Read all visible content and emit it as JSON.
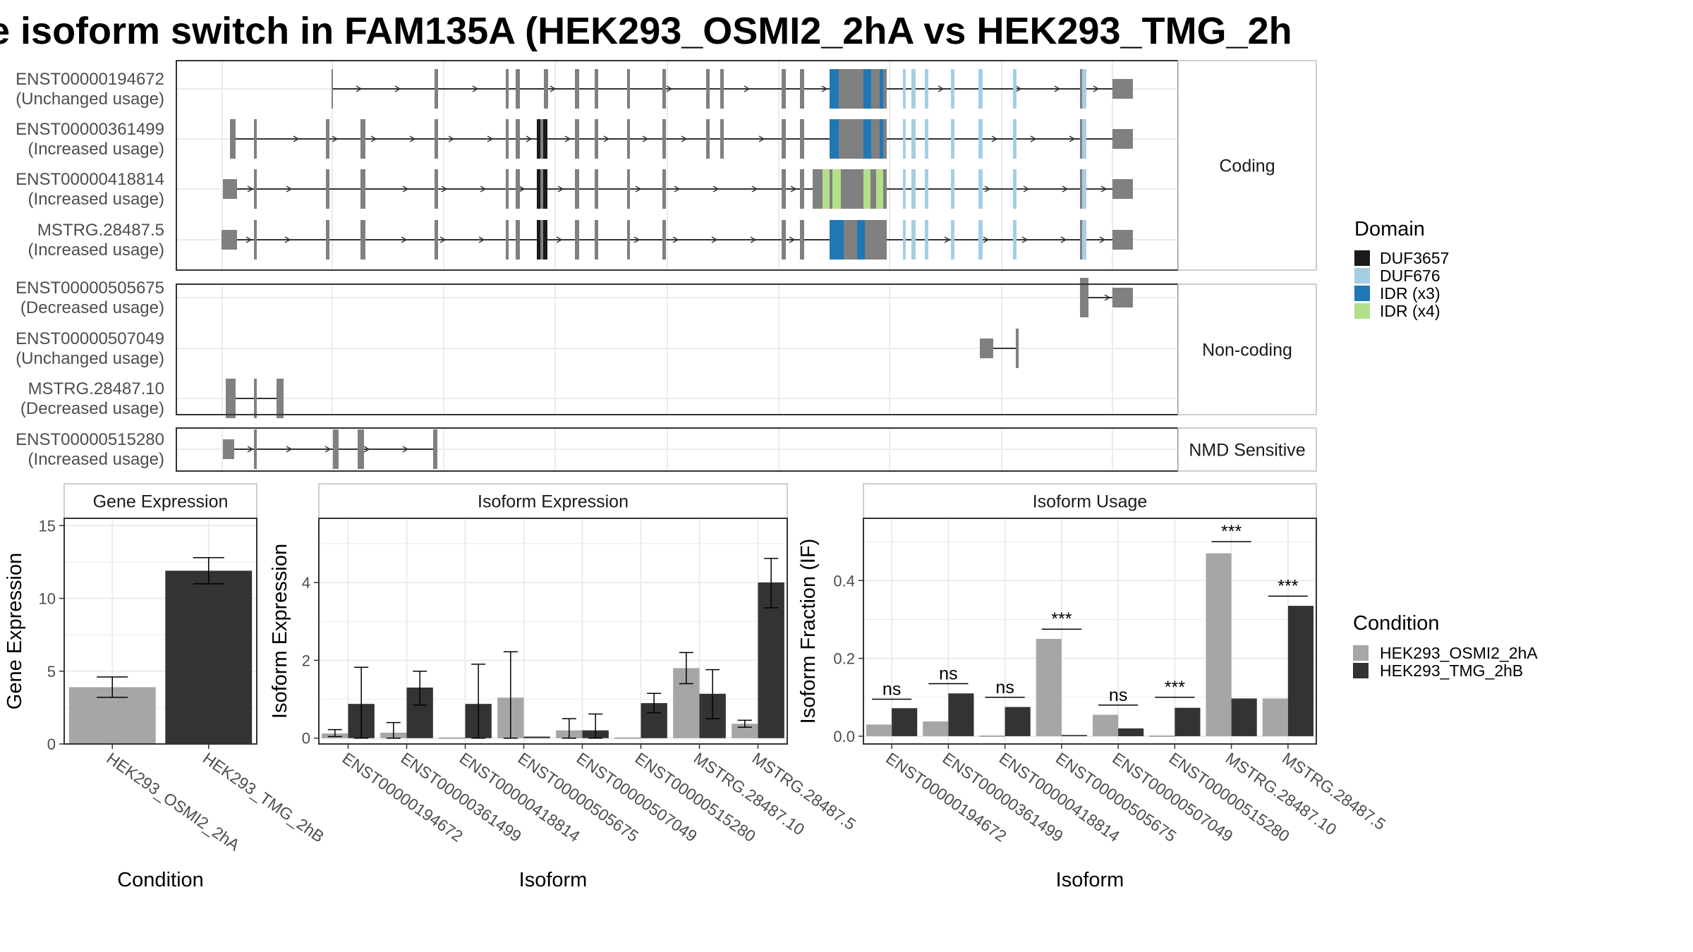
{
  "title": "e isoform switch in FAM135A (HEK293_OSMI2_2hA vs HEK293_TMG_2h",
  "colors": {
    "cond1": "#a6a6a6",
    "cond2": "#333333",
    "exon": "#808080",
    "DUF3657": "#1a1a1a",
    "DUF676": "#a6cee3",
    "IDR (x3)": "#1f78b4",
    "IDR (x4)": "#b2df8a"
  },
  "structure": {
    "groups": [
      {
        "label": "Coding",
        "isoforms": [
          {
            "id": "ENST00000194672",
            "usage": "(Unchanged usage)"
          },
          {
            "id": "ENST00000361499",
            "usage": "(Increased usage)"
          },
          {
            "id": "ENST00000418814",
            "usage": "(Increased usage)"
          },
          {
            "id": "MSTRG.28487.5",
            "usage": "(Increased usage)"
          }
        ]
      },
      {
        "label": "Non-coding",
        "isoforms": [
          {
            "id": "ENST00000505675",
            "usage": "(Decreased usage)"
          },
          {
            "id": "ENST00000507049",
            "usage": "(Unchanged usage)"
          },
          {
            "id": "MSTRG.28487.10",
            "usage": "(Decreased usage)"
          }
        ]
      },
      {
        "label": "NMD Sensitive",
        "isoforms": [
          {
            "id": "ENST00000515280",
            "usage": "(Increased usage)"
          }
        ]
      }
    ]
  },
  "legend_domain": {
    "title": "Domain",
    "items": [
      "DUF3657",
      "DUF676",
      "IDR (x3)",
      "IDR (x4)"
    ]
  },
  "legend_condition": {
    "title": "Condition",
    "items": [
      "HEK293_OSMI2_2hA",
      "HEK293_TMG_2hB"
    ]
  },
  "chart_data": [
    {
      "type": "bar",
      "title": "Gene Expression",
      "xlabel": "Condition",
      "ylabel": "Gene Expression",
      "categories": [
        "HEK293_OSMI2_2hA",
        "HEK293_TMG_2hB"
      ],
      "values": [
        3.9,
        11.9
      ],
      "errors": [
        [
          3.2,
          4.6
        ],
        [
          11.0,
          12.8
        ]
      ],
      "ylim": [
        0,
        15.5
      ],
      "yticks": [
        0,
        5,
        10,
        15
      ]
    },
    {
      "type": "bar",
      "title": "Isoform Expression",
      "xlabel": "Isoform",
      "ylabel": "Isoform Expression",
      "categories": [
        "ENST00000194672",
        "ENST00000361499",
        "ENST00000418814",
        "ENST00000505675",
        "ENST00000507049",
        "ENST00000515280",
        "MSTRG.28487.10",
        "MSTRG.28487.5"
      ],
      "series": [
        {
          "name": "HEK293_OSMI2_2hA",
          "values": [
            0.12,
            0.14,
            0.0,
            1.04,
            0.2,
            0.0,
            1.8,
            0.37
          ],
          "errors": [
            [
              0.04,
              0.22
            ],
            [
              0.0,
              0.4
            ],
            null,
            [
              0.0,
              2.22
            ],
            [
              0.0,
              0.5
            ],
            null,
            [
              1.4,
              2.2
            ],
            [
              0.28,
              0.46
            ]
          ]
        },
        {
          "name": "HEK293_TMG_2hB",
          "values": [
            0.88,
            1.3,
            0.88,
            0.04,
            0.2,
            0.9,
            1.14,
            4.0
          ],
          "errors": [
            [
              0.0,
              1.82
            ],
            [
              0.85,
              1.72
            ],
            [
              0.0,
              1.9
            ],
            null,
            [
              0.0,
              0.62
            ],
            [
              0.65,
              1.15
            ],
            [
              0.5,
              1.76
            ],
            [
              3.35,
              4.62
            ]
          ]
        }
      ],
      "ylim": [
        -0.15,
        5.65
      ],
      "yticks": [
        0,
        2,
        4
      ]
    },
    {
      "type": "bar",
      "title": "Isoform Usage",
      "xlabel": "Isoform",
      "ylabel": "Isoform Fraction (IF)",
      "categories": [
        "ENST00000194672",
        "ENST00000361499",
        "ENST00000418814",
        "ENST00000505675",
        "ENST00000507049",
        "ENST00000515280",
        "MSTRG.28487.10",
        "MSTRG.28487.5"
      ],
      "series": [
        {
          "name": "HEK293_OSMI2_2hA",
          "values": [
            0.03,
            0.038,
            0.0,
            0.25,
            0.055,
            0.0,
            0.47,
            0.097
          ]
        },
        {
          "name": "HEK293_TMG_2hB",
          "values": [
            0.072,
            0.11,
            0.075,
            0.003,
            0.02,
            0.073,
            0.097,
            0.335
          ]
        }
      ],
      "significance": [
        "ns",
        "ns",
        "ns",
        "***",
        "ns",
        "***",
        "***",
        "***"
      ],
      "sig_level": [
        0.095,
        0.135,
        0.1,
        0.275,
        0.08,
        0.1,
        0.5,
        0.36
      ],
      "ylim": [
        -0.02,
        0.56
      ],
      "yticks": [
        0.0,
        0.2,
        0.4
      ]
    }
  ]
}
